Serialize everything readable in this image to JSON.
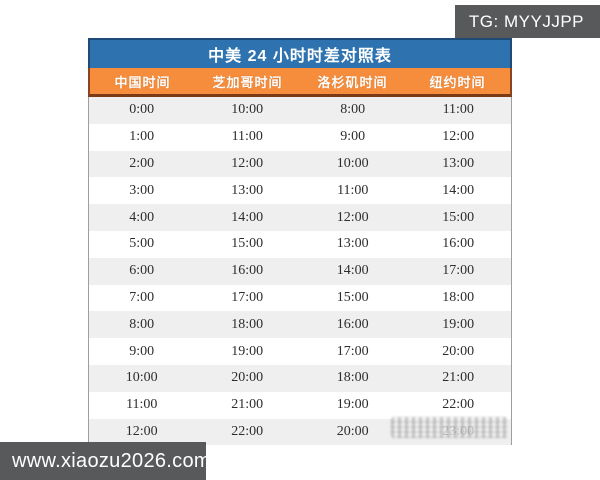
{
  "badges": {
    "tg": "TG: MYYJJPP",
    "site": "www.xiaozu2026.com",
    "bg_color": "#58595b",
    "text_color": "#ffffff"
  },
  "table": {
    "title": "中美 24 小时时差对照表",
    "headers": [
      "中国时间",
      "芝加哥时间",
      "洛杉矶时间",
      "纽约时间"
    ],
    "rows": [
      [
        "0:00",
        "10:00",
        "8:00",
        "11:00"
      ],
      [
        "1:00",
        "11:00",
        "9:00",
        "12:00"
      ],
      [
        "2:00",
        "12:00",
        "10:00",
        "13:00"
      ],
      [
        "3:00",
        "13:00",
        "11:00",
        "14:00"
      ],
      [
        "4:00",
        "14:00",
        "12:00",
        "15:00"
      ],
      [
        "5:00",
        "15:00",
        "13:00",
        "16:00"
      ],
      [
        "6:00",
        "16:00",
        "14:00",
        "17:00"
      ],
      [
        "7:00",
        "17:00",
        "15:00",
        "18:00"
      ],
      [
        "8:00",
        "18:00",
        "16:00",
        "19:00"
      ],
      [
        "9:00",
        "19:00",
        "17:00",
        "20:00"
      ],
      [
        "10:00",
        "20:00",
        "18:00",
        "21:00"
      ],
      [
        "11:00",
        "21:00",
        "19:00",
        "22:00"
      ],
      [
        "12:00",
        "22:00",
        "20:00",
        "23:00"
      ]
    ],
    "last_cell_obscured_by_watermark": true,
    "colors": {
      "title_bg": "#2e73af",
      "title_border": "#1d4a77",
      "header_bg": "#f68d3c",
      "header_border_bottom": "#7a3a16",
      "row_alt_bg": "#efeff0",
      "row_bg": "#ffffff",
      "cell_text": "#2d2d2d"
    }
  }
}
